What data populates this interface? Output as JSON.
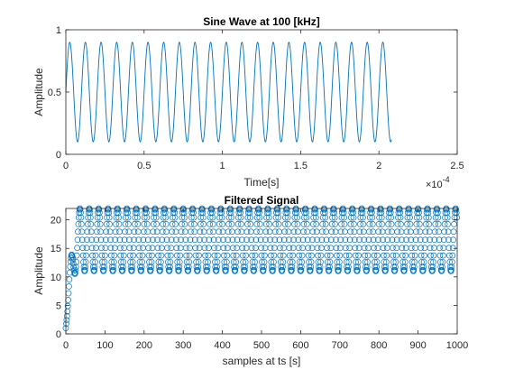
{
  "chart_data": [
    {
      "type": "line",
      "title": "Sine Wave at 100 [kHz]",
      "xlabel": "Time[s]",
      "ylabel": "Amplitude",
      "x_exponent_label": "×10",
      "x_exponent_power": "-4",
      "xlim": [
        0,
        2.5
      ],
      "ylim": [
        0,
        1
      ],
      "x_scale_factor": 0.0001,
      "xticks": [
        0,
        0.5,
        1,
        1.5,
        2,
        2.5
      ],
      "xtick_labels": [
        "0",
        "0.5",
        "1",
        "1.5",
        "2",
        "2.5"
      ],
      "yticks": [
        0,
        0.5,
        1
      ],
      "ytick_labels": [
        "0",
        "0.5",
        "1"
      ],
      "grid": false,
      "series": [
        {
          "color": "#0072BD",
          "signal": {
            "frequency_hz": 100000,
            "offset": 0.5,
            "amplitude": 0.4,
            "t_start_s": 0,
            "t_end_s": 0.000208
          }
        }
      ]
    },
    {
      "type": "scatter",
      "title": "Filtered Signal",
      "xlabel": "samples at ts [s]",
      "ylabel": "Amplitude",
      "xlim": [
        0,
        1000
      ],
      "ylim": [
        0,
        22
      ],
      "xticks": [
        0,
        100,
        200,
        300,
        400,
        500,
        600,
        700,
        800,
        900,
        1000
      ],
      "xtick_labels": [
        "0",
        "100",
        "200",
        "300",
        "400",
        "500",
        "600",
        "700",
        "800",
        "900",
        "1000"
      ],
      "yticks": [
        0,
        5,
        10,
        15,
        20
      ],
      "ytick_labels": [
        "0",
        "5",
        "10",
        "15",
        "20"
      ],
      "grid": false,
      "marker": "o",
      "series": [
        {
          "color": "#0072BD",
          "signal": {
            "n_samples": 1000,
            "period_samples": 24,
            "mean": 16.5,
            "amplitude": 5.5,
            "rise_samples": 25,
            "start_value": 1
          }
        }
      ]
    }
  ]
}
